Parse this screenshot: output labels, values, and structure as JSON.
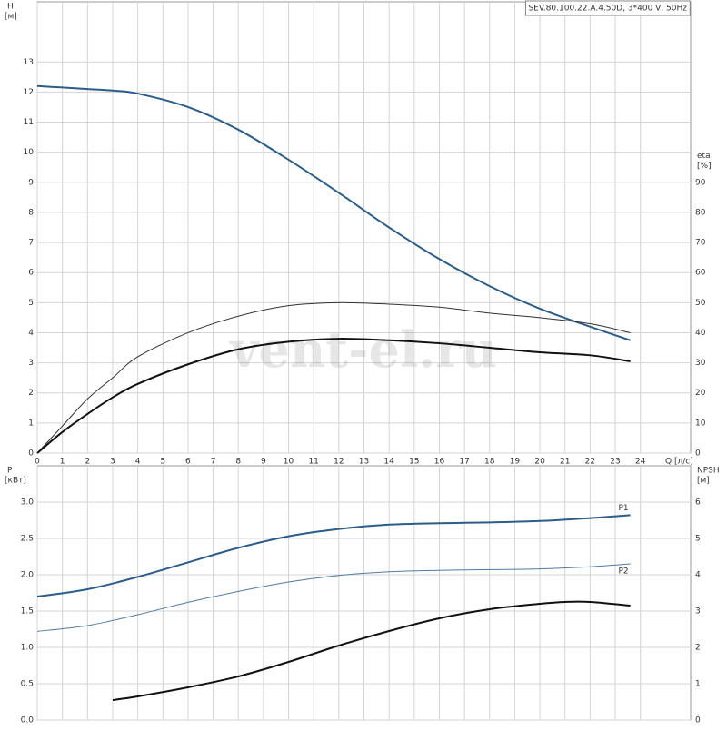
{
  "chart_data": [
    {
      "type": "line",
      "title": "SEV.80.100.22.A.4.50D, 3*400 V, 50Hz",
      "watermark": "vent-el.ru",
      "x_label": "Q [л/с]",
      "y_label": "H",
      "y_unit": "[м]",
      "y2_label": "eta",
      "y2_unit": "[%]",
      "xlim": [
        0,
        26
      ],
      "xticks": [
        0,
        1,
        2,
        3,
        4,
        5,
        6,
        7,
        8,
        9,
        10,
        11,
        12,
        13,
        14,
        15,
        16,
        17,
        18,
        19,
        20,
        21,
        22,
        23,
        24
      ],
      "ylim": [
        0,
        15
      ],
      "yticks": [
        0,
        1,
        2,
        3,
        4,
        5,
        6,
        7,
        8,
        9,
        10,
        11,
        12,
        13
      ],
      "y2lim": [
        0,
        150
      ],
      "y2ticks": [
        0,
        10,
        20,
        30,
        40,
        50,
        60,
        70,
        80,
        90
      ],
      "grid": true,
      "series": [
        {
          "color": "#2b5d8c",
          "width": 2,
          "x": [
            0,
            1,
            2,
            3,
            4,
            6,
            8,
            10,
            12,
            14,
            16,
            18,
            20,
            22,
            23.6
          ],
          "values": [
            12.2,
            12.15,
            12.1,
            12.05,
            11.95,
            11.5,
            10.75,
            9.75,
            8.65,
            7.5,
            6.45,
            5.55,
            4.8,
            4.2,
            3.75
          ]
        },
        {
          "color": "#333333",
          "width": 1,
          "axis": "y2",
          "x": [
            0,
            1,
            2,
            3,
            4,
            6,
            8,
            10,
            12,
            14,
            16,
            18,
            20,
            22,
            23.6
          ],
          "values": [
            0,
            9,
            18,
            25,
            32,
            40,
            45.5,
            49,
            50,
            49.5,
            48.5,
            46.5,
            45,
            43,
            40
          ]
        },
        {
          "color": "#111111",
          "width": 2,
          "axis": "y2",
          "x": [
            0,
            1,
            2,
            3,
            4,
            6,
            8,
            10,
            12,
            14,
            16,
            18,
            20,
            22,
            23.6
          ],
          "values": [
            0,
            7,
            13,
            18.5,
            23,
            29.5,
            34.5,
            37,
            38,
            37.5,
            36.5,
            35,
            33.5,
            32.5,
            30.5
          ]
        }
      ]
    },
    {
      "type": "line",
      "y_label": "P",
      "y_unit": "[кВт]",
      "y2_label": "NPSH",
      "y2_unit": "[м]",
      "xlim": [
        0,
        26
      ],
      "ylim": [
        0,
        3.5
      ],
      "yticks": [
        {
          "value": 0,
          "label": "0.0"
        },
        0.5,
        {
          "value": 1,
          "label": "1.0"
        },
        1.5,
        {
          "value": 2,
          "label": "2.0"
        },
        2.5,
        {
          "value": 3,
          "label": "3.0"
        }
      ],
      "y2lim": [
        0,
        7
      ],
      "y2ticks": [
        0,
        1,
        2,
        3,
        4,
        5,
        6
      ],
      "grid": true,
      "series": [
        {
          "name": "P1",
          "color": "#2b5d8c",
          "width": 2,
          "x": [
            0,
            2,
            4,
            6,
            8,
            10,
            12,
            14,
            16,
            18,
            20,
            22,
            23.6
          ],
          "values": [
            1.7,
            1.8,
            1.97,
            2.17,
            2.37,
            2.53,
            2.63,
            2.69,
            2.71,
            2.72,
            2.74,
            2.78,
            2.82
          ]
        },
        {
          "name": "P2",
          "color": "#4f7aa6",
          "width": 1,
          "x": [
            0,
            2,
            4,
            6,
            8,
            10,
            12,
            14,
            16,
            18,
            20,
            22,
            23.6
          ],
          "values": [
            1.22,
            1.3,
            1.45,
            1.62,
            1.77,
            1.9,
            1.99,
            2.04,
            2.06,
            2.07,
            2.08,
            2.11,
            2.15
          ]
        },
        {
          "color": "#111111",
          "width": 2,
          "axis": "y2",
          "x": [
            3,
            4,
            6,
            8,
            10,
            12,
            14,
            16,
            18,
            20,
            21,
            22,
            23.6
          ],
          "values": [
            0.55,
            0.65,
            0.9,
            1.2,
            1.6,
            2.05,
            2.45,
            2.8,
            3.05,
            3.2,
            3.25,
            3.25,
            3.15
          ]
        }
      ]
    }
  ]
}
